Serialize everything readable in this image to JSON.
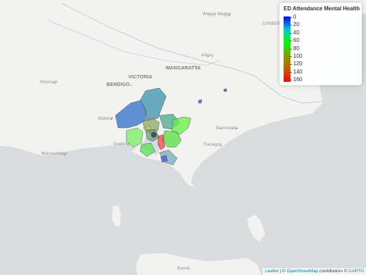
{
  "legend": {
    "title": "ED Attendance Mental Health",
    "ticks": [
      "0",
      "20",
      "40",
      "60",
      "80",
      "100",
      "120",
      "140",
      "160"
    ],
    "colors": [
      "#0000ff",
      "#00c8c8",
      "#00ff00",
      "#80a000",
      "#c06000",
      "#ff0000"
    ]
  },
  "places": {
    "victoria": "VICTORIA",
    "wangaratta": "WANGARATTA",
    "bendigo": "BENDIGO",
    "wagga": "Wagga Wagga",
    "canberra": "CANBER",
    "albury": "Albury",
    "horsham": "Horsham",
    "ballarat": "Ballarat",
    "geelong": "Geelong",
    "warrnambool": "Warrnambool",
    "bairnsdale": "Bairnsdale",
    "traralgon": "Traralgon",
    "burnie": "Burnie"
  },
  "attribution": {
    "leaflet": "Leaflet",
    "sep": " | © ",
    "osm": "OpenStreetMap",
    "contrib": " contributors © ",
    "carto": "CARTO"
  },
  "colors": {
    "land": "#f2f2f0",
    "water": "#d9dcdc"
  }
}
